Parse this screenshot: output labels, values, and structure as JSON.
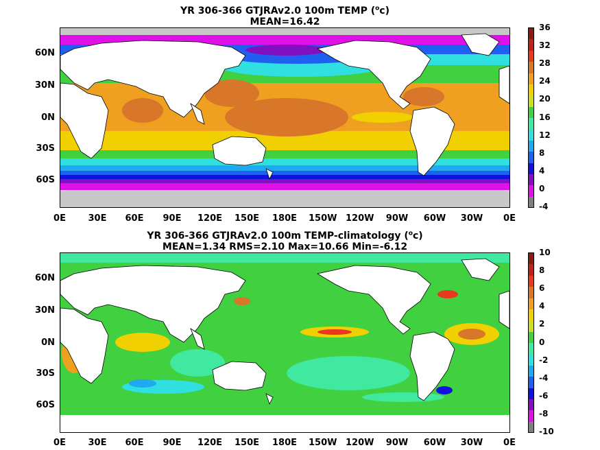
{
  "panel1": {
    "title_line1": "YR 306-366 GTJRAv2.0 100m TEMP (",
    "title_sup": "o",
    "title_unit": "c)",
    "title_line2": "MEAN=16.42",
    "colorbar_ticks": [
      "36",
      "32",
      "28",
      "24",
      "20",
      "16",
      "12",
      "8",
      "4",
      "0",
      "-4"
    ],
    "colorbar_colors": [
      "#8a1a14",
      "#c0221a",
      "#e8381f",
      "#d8762a",
      "#f0a020",
      "#f0d000",
      "#c8e020",
      "#40d040",
      "#40e8a0",
      "#30e0e0",
      "#20a8f0",
      "#2060f0",
      "#1010e0",
      "#8010c0",
      "#e010e8",
      "#808080"
    ]
  },
  "panel2": {
    "title_line1": "YR 306-366 GTJRAv2.0 100m TEMP-climatology (",
    "title_sup": "o",
    "title_unit": "c)",
    "title_line2": "MEAN=1.34   RMS=2.10   Max=10.66   Min=-6.12",
    "colorbar_ticks": [
      "10",
      "8",
      "6",
      "4",
      "2",
      "0",
      "-2",
      "-4",
      "-6",
      "-8",
      "-10"
    ],
    "colorbar_colors": [
      "#8a1a14",
      "#c0221a",
      "#e8381f",
      "#d8762a",
      "#f0a020",
      "#f0d000",
      "#c8e020",
      "#40d040",
      "#40e8a0",
      "#30e0e0",
      "#20a8f0",
      "#2060f0",
      "#1010e0",
      "#8010c0",
      "#e010e8",
      "#808080"
    ]
  },
  "axes": {
    "lat_labels": [
      "60N",
      "30N",
      "0N",
      "30S",
      "60S"
    ],
    "lon_labels": [
      "0E",
      "30E",
      "60E",
      "90E",
      "120E",
      "150E",
      "180E",
      "150W",
      "120W",
      "90W",
      "60W",
      "30W",
      "0E"
    ]
  }
}
